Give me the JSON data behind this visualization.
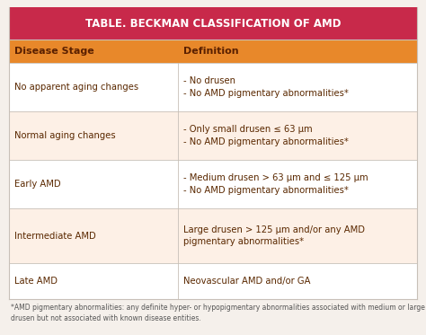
{
  "title": "TABLE. BECKMAN CLASSIFICATION OF AMD",
  "title_bg": "#c8294a",
  "title_color": "#ffffff",
  "header_bg": "#e8882a",
  "header_color": "#5a2000",
  "col1_header": "Disease Stage",
  "col2_header": "Definition",
  "row_bg_light": "#fdf0e6",
  "row_bg_white": "#ffffff",
  "border_color": "#c8c0b8",
  "text_color": "#5a2800",
  "footnote_color": "#555555",
  "outer_bg": "#f5f0eb",
  "rows": [
    {
      "stage": "No apparent aging changes",
      "definition": "- No drusen\n- No AMD pigmentary abnormalities*"
    },
    {
      "stage": "Normal aging changes",
      "definition": "- Only small drusen ≤ 63 μm\n- No AMD pigmentary abnormalities*"
    },
    {
      "stage": "Early AMD",
      "definition": "- Medium drusen > 63 μm and ≤ 125 μm\n- No AMD pigmentary abnormalities*"
    },
    {
      "stage": "Intermediate AMD",
      "definition": "Large drusen > 125 μm and/or any AMD\npigmentary abnormalities*"
    },
    {
      "stage": "Late AMD",
      "definition": "Neovascular AMD and/or GA"
    }
  ],
  "footnote": "*AMD pigmentary abnormalities: any definite hyper- or hypopigmentary abnormalities associated with medium or large\ndrusen but not associated with known disease entities.",
  "col_split": 0.415,
  "title_fontsize": 8.5,
  "header_fontsize": 8.0,
  "cell_fontsize": 7.2,
  "footnote_fontsize": 5.5
}
